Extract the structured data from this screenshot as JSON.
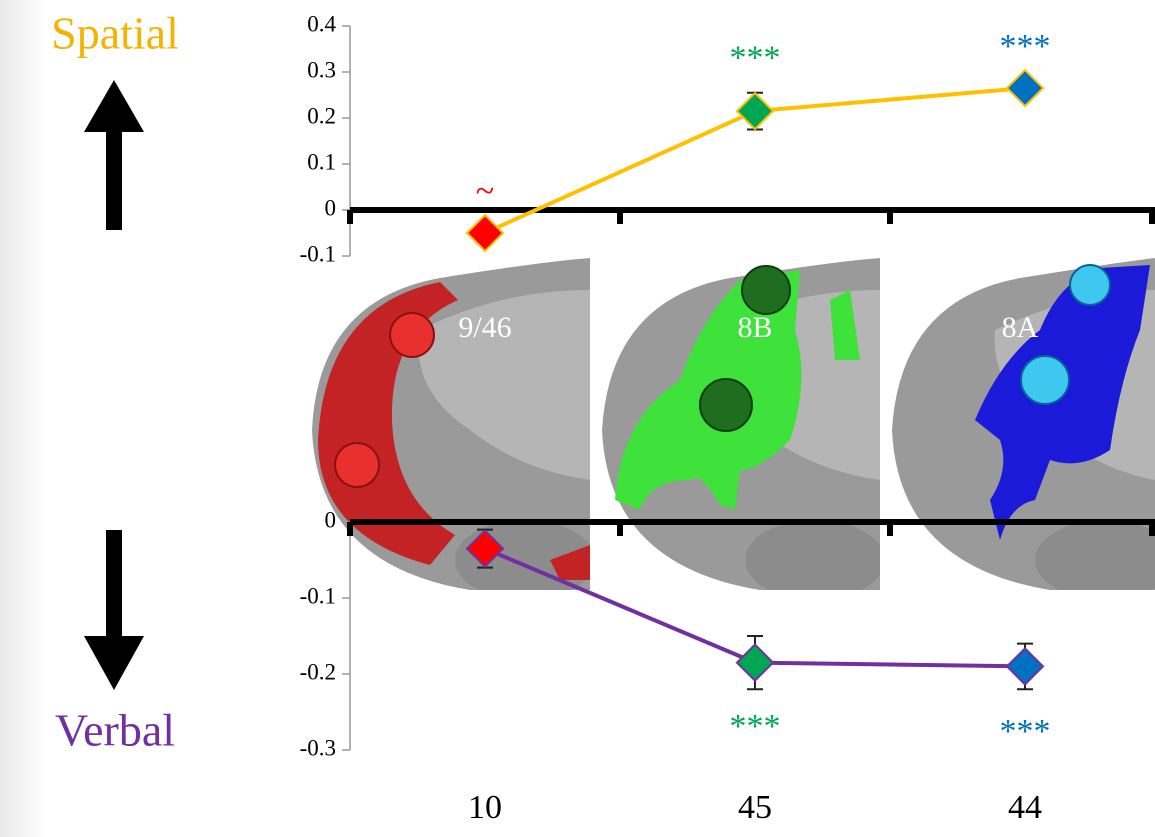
{
  "chart_data": [
    {
      "type": "line",
      "ylabel": "Spatial",
      "ylabel_color": "#f5b301",
      "categories": [
        null,
        null,
        null
      ],
      "values": [
        -0.05,
        0.215,
        0.265
      ],
      "errors": [
        0.015,
        0.04,
        0.015
      ],
      "color": "#ffc000",
      "marker_colors": [
        "#ff0000",
        "#00a651",
        "#0070c0"
      ],
      "annotations": [
        "~",
        "***",
        "***"
      ],
      "annotation_colors": [
        "#ff0000",
        "#00a651",
        "#0070c0"
      ],
      "ylim": [
        -0.1,
        0.4
      ],
      "yticks": [
        -0.1,
        0,
        0.1,
        0.2,
        0.3,
        0.4
      ]
    },
    {
      "type": "line",
      "ylabel": "Verbal",
      "ylabel_color": "#7030a0",
      "categories": [
        "10",
        "45",
        "44"
      ],
      "values": [
        -0.035,
        -0.185,
        -0.19
      ],
      "errors": [
        0.025,
        0.035,
        0.03
      ],
      "color": "#7030a0",
      "marker_colors": [
        "#ff0000",
        "#00a651",
        "#0070c0"
      ],
      "annotations": [
        null,
        "***",
        "***"
      ],
      "annotation_colors": [
        null,
        "#00a651",
        "#0070c0"
      ],
      "ylim": [
        -0.3,
        0
      ],
      "yticks": [
        -0.3,
        -0.2,
        -0.1,
        0
      ]
    }
  ],
  "brain_panels": {
    "labels": [
      "9/46",
      "8B",
      "8A"
    ]
  }
}
